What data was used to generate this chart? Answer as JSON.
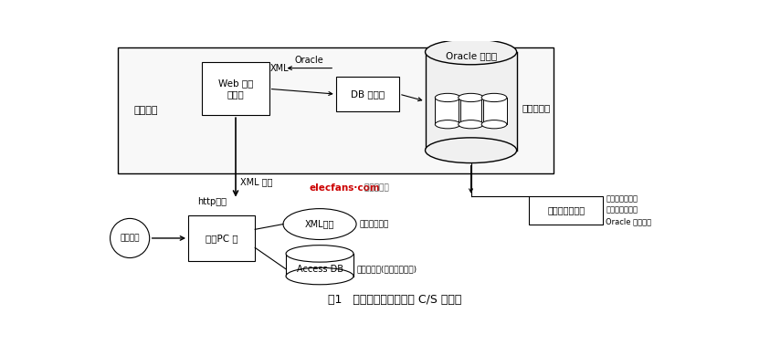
{
  "fig_width": 8.43,
  "fig_height": 3.78,
  "dpi": 100,
  "bg_color": "#ffffff",
  "title": "图1   服装款式图设计系统 C/S 框架图",
  "title_fontsize": 9,
  "watermark_color_1": "#cc0000",
  "watermark_color_2": "#555555",
  "server_platform_label": "服务平台",
  "web_server_label": "Web 应用\n服务器",
  "db_server_label": "DB 服务器",
  "oracle_db_label": "Oracle 数据库",
  "unified_repo_label": "统一资源库",
  "xml_label": "XML",
  "oracle_arrow_label": "Oracle",
  "xml_format_label": "XML 格式",
  "http_label": "http方式",
  "design_software_label": "设计软件",
  "client_pc_label": "客户PC 机",
  "xml_file_label": "XML文件",
  "temp_data_label": "暂存数据文件",
  "access_db_label": "Access DB",
  "local_db_label": "本地数据库(存放设计结果)",
  "style_db_label": "款式设计数据库",
  "style_note_label": "款式部件矢量化\n数据信息存放在\nOracle 数据库中"
}
